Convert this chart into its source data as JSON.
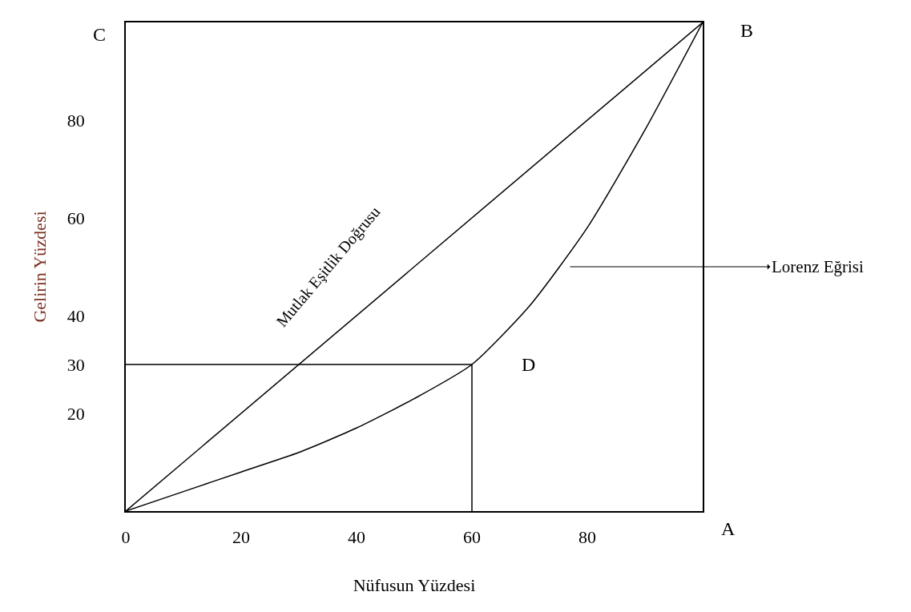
{
  "chart_data": {
    "type": "line",
    "xlabel": "Nüfusun Yüzdesi",
    "ylabel": "Gelirin Yüzdesi",
    "xlim": [
      0,
      100
    ],
    "ylim": [
      0,
      100
    ],
    "xticks": [
      0,
      20,
      40,
      60,
      80
    ],
    "yticks": [
      20,
      30,
      40,
      60,
      80
    ],
    "grid": false,
    "marker": "none",
    "line_style": "solid",
    "series": [
      {
        "color": "#000000",
        "x": [
          0,
          100
        ],
        "values": [
          0,
          100
        ]
      },
      {
        "color": "#000000",
        "x": [
          0,
          10,
          20,
          30,
          40,
          50,
          60,
          70,
          80,
          90,
          100
        ],
        "values": [
          0,
          4,
          8,
          12,
          17,
          23,
          30,
          42,
          58,
          78,
          100
        ]
      },
      {
        "color": "#000000",
        "x": [
          0,
          60,
          60
        ],
        "values": [
          30,
          30,
          0
        ]
      }
    ],
    "annotations": [
      "C",
      {
        "text": "B",
        "x": 100,
        "y": 100
      },
      "A",
      {
        "text": "D",
        "x": 60,
        "y": 30
      },
      "Mutlak Eşitlik Doğrusu",
      "Lorenz Eğrisi"
    ]
  }
}
